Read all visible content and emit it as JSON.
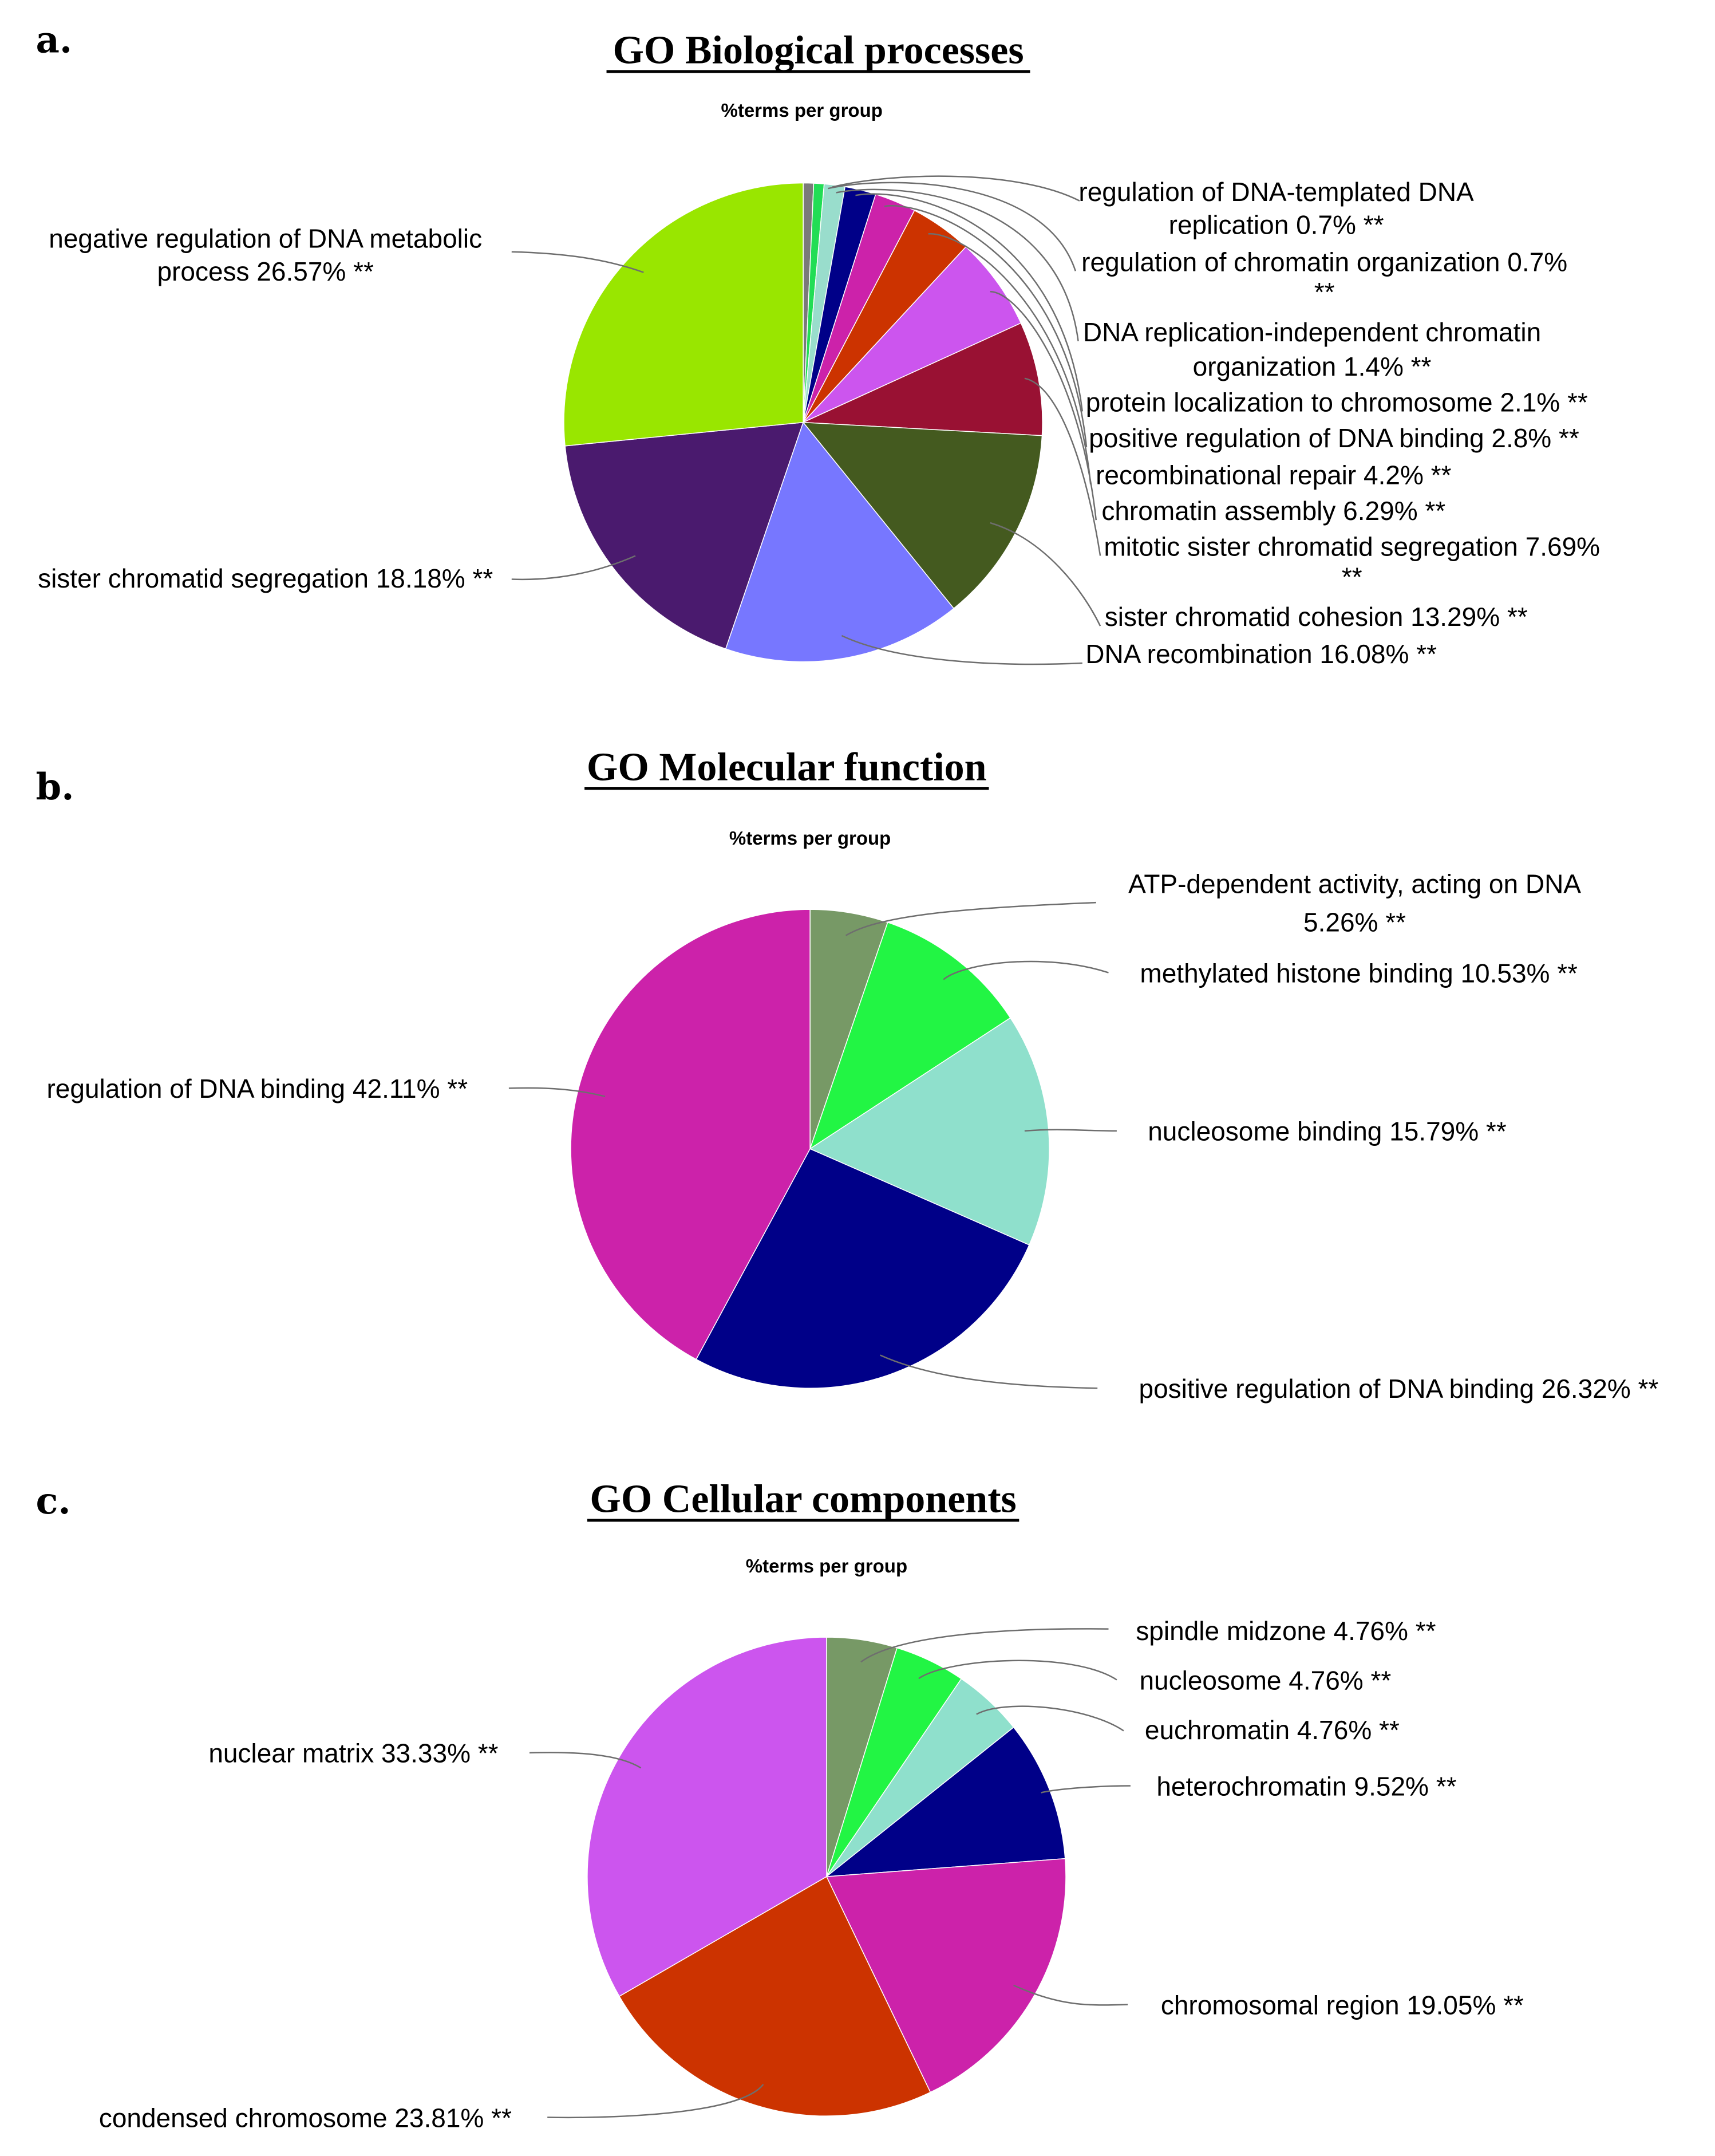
{
  "chart_data": [
    {
      "type": "pie",
      "panel": "a.",
      "title": "GO Biological processes",
      "subtitle": "%terms per group",
      "slices": [
        {
          "name": "regulation of DNA-templated DNA replication",
          "value": 0.7,
          "label": [
            "regulation of DNA-templated DNA",
            "replication 0.7% **"
          ],
          "color": "#7a7a7a"
        },
        {
          "name": "regulation of chromatin organization",
          "value": 0.7,
          "label": [
            "regulation of chromatin organization 0.7%",
            "**"
          ],
          "color": "#22dd55"
        },
        {
          "name": "DNA replication-independent chromatin organization",
          "value": 1.4,
          "label": [
            "DNA replication-independent chromatin",
            "organization 1.4% **"
          ],
          "color": "#99ddcc"
        },
        {
          "name": "protein localization to chromosome",
          "value": 2.1,
          "label": [
            "protein localization to chromosome 2.1% **"
          ],
          "color": "#000088"
        },
        {
          "name": "positive regulation of DNA binding",
          "value": 2.8,
          "label": [
            "positive regulation of DNA binding 2.8% **"
          ],
          "color": "#cc22aa"
        },
        {
          "name": "recombinational repair",
          "value": 4.2,
          "label": [
            "recombinational repair 4.2% **"
          ],
          "color": "#cc3300"
        },
        {
          "name": "chromatin assembly",
          "value": 6.29,
          "label": [
            "chromatin assembly 6.29% **"
          ],
          "color": "#cc55ee"
        },
        {
          "name": "mitotic sister chromatid segregation",
          "value": 7.69,
          "label": [
            "mitotic sister chromatid segregation 7.69%",
            "**"
          ],
          "color": "#991133"
        },
        {
          "name": "sister chromatid cohesion",
          "value": 13.29,
          "label": [
            "sister chromatid cohesion 13.29% **"
          ],
          "color": "#445a1f"
        },
        {
          "name": "DNA recombination",
          "value": 16.08,
          "label": [
            "DNA recombination 16.08% **"
          ],
          "color": "#7777ff"
        },
        {
          "name": "sister chromatid segregation",
          "value": 18.18,
          "label": [
            "sister chromatid segregation 18.18% **"
          ],
          "color": "#4a1a6e"
        },
        {
          "name": "negative regulation of DNA metabolic process",
          "value": 26.57,
          "label": [
            "negative regulation of DNA metabolic",
            "process 26.57% **"
          ],
          "color": "#99e600"
        }
      ]
    },
    {
      "type": "pie",
      "panel": "b.",
      "title": "GO Molecular function",
      "subtitle": "%terms per group",
      "slices": [
        {
          "name": "ATP-dependent activity, acting on DNA",
          "value": 5.26,
          "label": [
            "ATP-dependent activity, acting on DNA",
            "5.26% **"
          ],
          "color": "#779966"
        },
        {
          "name": "methylated histone binding",
          "value": 10.53,
          "label": [
            "methylated histone binding 10.53% **"
          ],
          "color": "#22f544"
        },
        {
          "name": "nucleosome binding",
          "value": 15.79,
          "label": [
            "nucleosome binding 15.79% **"
          ],
          "color": "#8fe0cc"
        },
        {
          "name": "positive regulation of DNA binding",
          "value": 26.32,
          "label": [
            "positive regulation of DNA binding 26.32% **"
          ],
          "color": "#000088"
        },
        {
          "name": "regulation of DNA binding",
          "value": 42.11,
          "label": [
            "regulation of DNA binding 42.11% **"
          ],
          "color": "#cc22aa"
        }
      ]
    },
    {
      "type": "pie",
      "panel": "c.",
      "title": "GO Cellular components",
      "subtitle": "%terms per group",
      "slices": [
        {
          "name": "spindle midzone",
          "value": 4.76,
          "label": [
            "spindle midzone 4.76% **"
          ],
          "color": "#779966"
        },
        {
          "name": "nucleosome",
          "value": 4.76,
          "label": [
            "nucleosome 4.76% **"
          ],
          "color": "#22f544"
        },
        {
          "name": "euchromatin",
          "value": 4.76,
          "label": [
            "euchromatin 4.76% **"
          ],
          "color": "#8fe0cc"
        },
        {
          "name": "heterochromatin",
          "value": 9.52,
          "label": [
            "heterochromatin 9.52% **"
          ],
          "color": "#000088"
        },
        {
          "name": "chromosomal region",
          "value": 19.05,
          "label": [
            "chromosomal region 19.05% **"
          ],
          "color": "#cc22aa"
        },
        {
          "name": "condensed chromosome",
          "value": 23.81,
          "label": [
            "condensed chromosome 23.81% **"
          ],
          "color": "#cc3300"
        },
        {
          "name": "nuclear matrix",
          "value": 33.33,
          "label": [
            "nuclear matrix 33.33% **"
          ],
          "color": "#cc55ee"
        }
      ]
    }
  ]
}
